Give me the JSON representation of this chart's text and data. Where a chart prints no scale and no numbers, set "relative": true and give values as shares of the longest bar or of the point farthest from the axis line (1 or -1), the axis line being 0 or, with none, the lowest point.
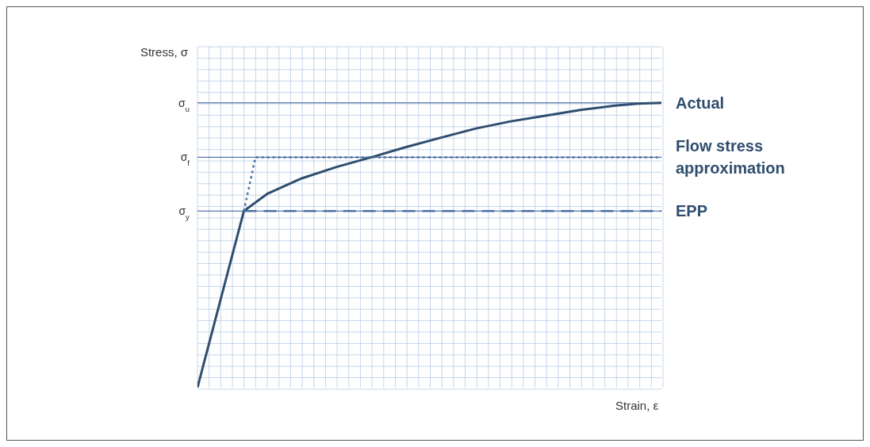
{
  "chart_data": {
    "type": "line",
    "relative": true,
    "xlabel": "Strain, ε",
    "ylabel": "Stress, σ",
    "tick_labels": false,
    "grid": true,
    "marker": "none",
    "categories": [
      null,
      null,
      null,
      null,
      null,
      null,
      null,
      null,
      null,
      null,
      null,
      null,
      null,
      null,
      null,
      null,
      null,
      null,
      null,
      null,
      null,
      null,
      null,
      null,
      null,
      null,
      null,
      null,
      null,
      null,
      null,
      null,
      null,
      null,
      null,
      null,
      null,
      null,
      null,
      null,
      null
    ],
    "ref_lines": [
      {
        "axis": "y",
        "value": 1,
        "label": "σ$_{u}$",
        "color": "#2f5597"
      },
      {
        "axis": "y",
        "value": 0.809,
        "label": "σ$_{f}$",
        "color": "#2f5597"
      },
      {
        "axis": "y",
        "value": 0.62,
        "label": "σ$_{y}$",
        "color": "#2f5597"
      }
    ],
    "series": [
      {
        "name": "Actual",
        "color": "#2f4d6f",
        "line_style": "solid",
        "values": [
          0,
          null,
          null,
          null,
          0.62,
          null,
          0.68,
          null,
          null,
          0.735,
          null,
          null,
          0.775,
          null,
          null,
          0.809,
          null,
          null,
          0.845,
          null,
          null,
          0.878,
          null,
          null,
          0.91,
          null,
          null,
          0.935,
          null,
          null,
          0.955,
          null,
          null,
          0.975,
          null,
          null,
          0.99,
          null,
          0.997,
          null,
          1
        ]
      },
      {
        "name": "Flow stress approximation",
        "color": "#4a6fa5",
        "line_style": "dotted",
        "values": [
          null,
          null,
          null,
          null,
          0.62,
          0.809,
          null,
          null,
          null,
          null,
          null,
          null,
          null,
          null,
          null,
          null,
          null,
          null,
          null,
          null,
          null,
          null,
          null,
          null,
          null,
          null,
          null,
          null,
          null,
          null,
          null,
          null,
          null,
          null,
          null,
          null,
          null,
          null,
          null,
          null,
          0.809
        ]
      },
      {
        "name": "EPP",
        "color": "#4a6fa5",
        "line_style": "dashed",
        "values": [
          null,
          null,
          null,
          null,
          0.62,
          null,
          null,
          null,
          null,
          null,
          null,
          null,
          null,
          null,
          null,
          null,
          null,
          null,
          null,
          null,
          null,
          null,
          null,
          null,
          null,
          null,
          null,
          null,
          null,
          null,
          null,
          null,
          null,
          null,
          null,
          null,
          null,
          null,
          null,
          null,
          0.62
        ]
      }
    ]
  }
}
